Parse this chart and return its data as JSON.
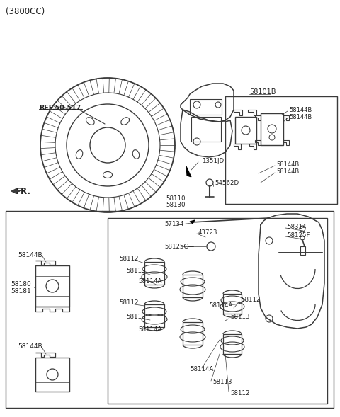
{
  "bg_color": "#ffffff",
  "lc": "#3a3a3a",
  "tc": "#222222",
  "labels": {
    "subtitle": "(3800CC)",
    "ref": "REF.50-517",
    "fr": "FR.",
    "p58101B": "58101B",
    "p58144B": "58144B",
    "p1351JD": "1351JD",
    "p54562D": "54562D",
    "p58110": "58110",
    "p58130": "58130",
    "p57134": "57134",
    "p43723": "43723",
    "p58125C": "58125C—",
    "p58314": "58314",
    "p58125F": "58125F",
    "p58112": "58112",
    "p58113": "58113",
    "p58114A": "58114A",
    "p58180": "58180",
    "p58181": "58181",
    "p58144B_L": "58144B"
  }
}
